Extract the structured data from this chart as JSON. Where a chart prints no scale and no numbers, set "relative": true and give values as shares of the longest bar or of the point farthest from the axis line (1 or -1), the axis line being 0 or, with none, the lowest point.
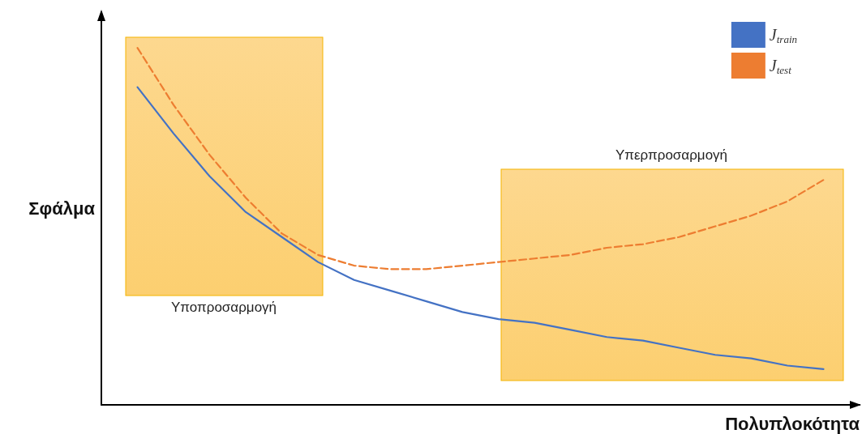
{
  "chart_data": {
    "type": "line",
    "relative": true,
    "xlabel": "Πολυπλοκότητα",
    "ylabel": "Σφάλμα",
    "categories": [
      null,
      null,
      null,
      null,
      null,
      null,
      null,
      null,
      null,
      null,
      null,
      null,
      null,
      null,
      null,
      null,
      null,
      null,
      null,
      null
    ],
    "series": [
      {
        "name": "J$_{train}$",
        "color": "#4472c4",
        "line_style": "solid",
        "values": [
          0.89,
          0.76,
          0.64,
          0.54,
          0.47,
          0.4,
          0.35,
          0.32,
          0.29,
          0.26,
          0.24,
          0.23,
          0.21,
          0.19,
          0.18,
          0.16,
          0.14,
          0.13,
          0.11,
          0.1
        ]
      },
      {
        "name": "J$_{test}$",
        "color": "#ed7d31",
        "line_style": "dashed",
        "values": [
          1.0,
          0.84,
          0.7,
          0.58,
          0.48,
          0.42,
          0.39,
          0.38,
          0.38,
          0.39,
          0.4,
          0.41,
          0.42,
          0.44,
          0.45,
          0.47,
          0.5,
          0.53,
          0.57,
          0.63
        ]
      }
    ],
    "annotations": [
      "Υποπροσαρμογή",
      "Υπερπροσαρμογή"
    ],
    "marker": "none",
    "grid": false,
    "legend": "top right"
  }
}
